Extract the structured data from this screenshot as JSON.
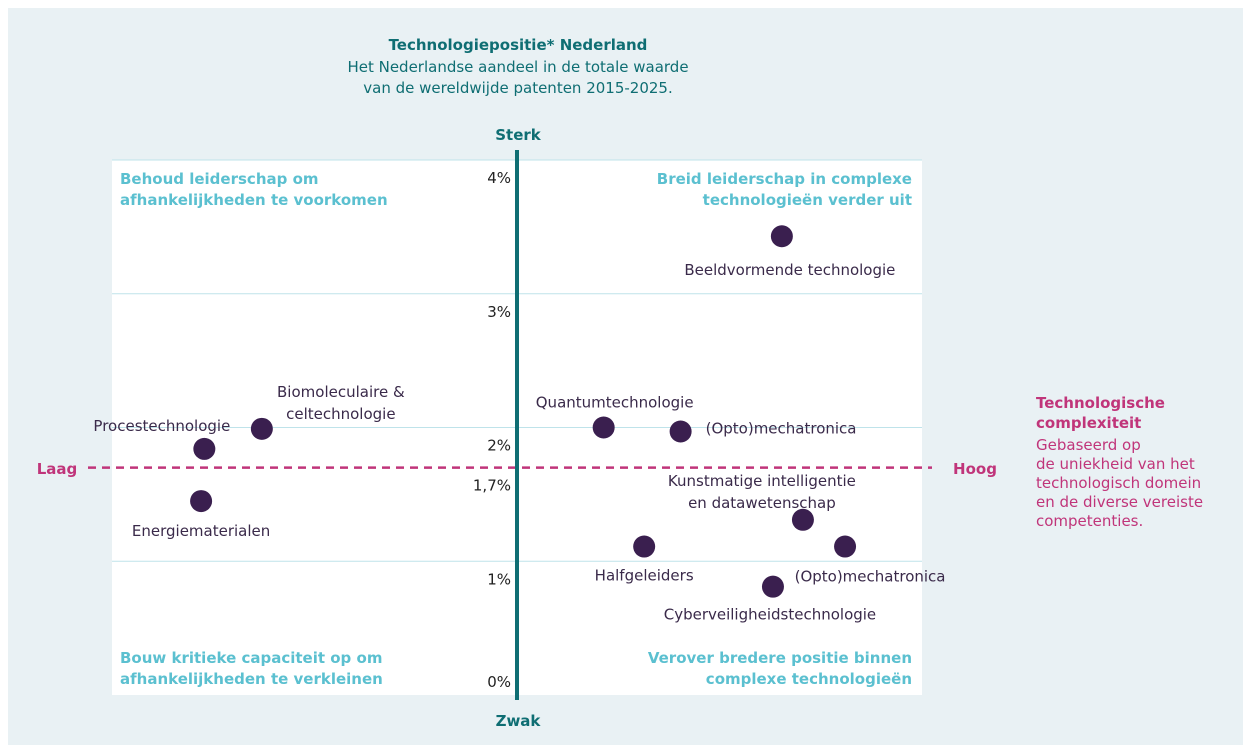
{
  "chart_data": {
    "type": "scatter",
    "title": "Technologiepositie* Nederland",
    "subtitle": [
      "Het Nederlandse aandeel in de totale waarde",
      "van de wereldwijde patenten 2015-2025."
    ],
    "y_top_label": "Sterk",
    "y_bottom_label": "Zwak",
    "x_left_label": "Laag",
    "x_right_label": "Hoog",
    "x_axis_title": [
      "Technologische",
      "complexiteit"
    ],
    "x_axis_note": [
      "Gebaseerd op",
      "de uniekheid van het",
      "technologisch domein",
      "en de diverse vereiste",
      "competenties."
    ],
    "quadrants": {
      "top_left": [
        "Behoud leiderschap om",
        "afhankelijkheden te voorkomen"
      ],
      "top_right": [
        "Breid leiderschap in complexe",
        "technologieën verder uit"
      ],
      "bottom_left": [
        "Bouw kritieke capaciteit op om",
        "afhankelijkheden te verkleinen"
      ],
      "bottom_right": [
        "Verover bredere positie binnen",
        "complexe technologieën"
      ]
    },
    "xlim": [
      0,
      100
    ],
    "ylim": [
      0,
      4
    ],
    "yticks": [
      {
        "value": 0,
        "label": "0%"
      },
      {
        "value": 1,
        "label": "1%"
      },
      {
        "value": 1.7,
        "label": "1,7%"
      },
      {
        "value": 2,
        "label": "2%"
      },
      {
        "value": 3,
        "label": "3%"
      },
      {
        "value": 4,
        "label": "4%"
      }
    ],
    "grid": true,
    "threshold_x": 50,
    "threshold_y": 1.7,
    "color": "#3a1f4f",
    "points": [
      {
        "label": [
          "Beeldvormende technologie"
        ],
        "x": 82.7,
        "y": 3.43
      },
      {
        "label": [
          "Quantumtechnologie"
        ],
        "x": 60.7,
        "y": 2.0
      },
      {
        "label": [
          "(Opto)mechatronica"
        ],
        "x": 70.2,
        "y": 1.97
      },
      {
        "label": [
          "Biomoleculaire &",
          "celtechnologie"
        ],
        "x": 18.5,
        "y": 1.99
      },
      {
        "label": [
          "Procestechnologie"
        ],
        "x": 11.4,
        "y": 1.84
      },
      {
        "label": [
          "Energiematerialen"
        ],
        "x": 11.0,
        "y": 1.45
      },
      {
        "label": [
          "Kunstmatige intelligentie",
          "en datawetenschap"
        ],
        "x": 85.3,
        "y": 1.31
      },
      {
        "label": [
          "Halfgeleiders"
        ],
        "x": 65.7,
        "y": 1.11
      },
      {
        "label": [
          "(Opto)mechatronica"
        ],
        "x": 90.5,
        "y": 1.11
      },
      {
        "label": [
          "Cyberveiligheidstechnologie"
        ],
        "x": 81.6,
        "y": 0.81
      }
    ]
  }
}
